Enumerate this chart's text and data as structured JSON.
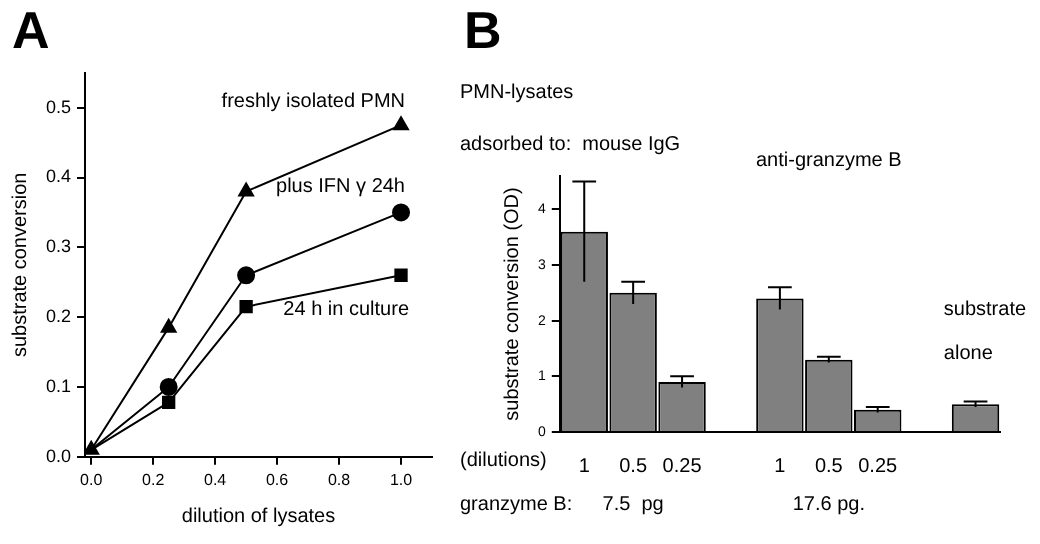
{
  "chart_data": [
    {
      "type": "line",
      "title": "A",
      "xlabel": "dilution of lysates",
      "ylabel": "substrate conversion",
      "xlim": [
        -0.02,
        1.1
      ],
      "ylim": [
        0,
        0.55
      ],
      "xticks": [
        {
          "value": 0,
          "label": "0.0"
        },
        {
          "value": 0.2,
          "label": "0.2"
        },
        {
          "value": 0.4,
          "label": "0.4"
        },
        {
          "value": 0.6,
          "label": "0.6"
        },
        {
          "value": 0.8,
          "label": "0.8"
        },
        {
          "value": 1,
          "label": "1.0"
        }
      ],
      "yticks": [
        {
          "value": 0,
          "label": "0.0"
        },
        0.1,
        0.2,
        0.3,
        0.4,
        0.5
      ],
      "grid": false,
      "legend": false,
      "series": [
        {
          "name": "freshly isolated PMN",
          "color": "#000000",
          "marker": "triangle",
          "x": [
            0,
            0.25,
            0.5,
            1.0
          ],
          "values": [
            0.01,
            0.185,
            0.38,
            0.475
          ]
        },
        {
          "name": "plus IFN γ 24h",
          "color": "#000000",
          "marker": "circle",
          "x": [
            0,
            0.25,
            0.5,
            1.0
          ],
          "values": [
            0.01,
            0.1,
            0.26,
            0.35
          ]
        },
        {
          "name": "24 h in culture",
          "color": "#000000",
          "marker": "square",
          "x": [
            0,
            0.25,
            0.5,
            1.0
          ],
          "values": [
            0.01,
            0.078,
            0.215,
            0.26
          ]
        }
      ]
    },
    {
      "type": "bar",
      "title": "B",
      "ylabel": "substrate conversion (OD)",
      "ylim": [
        0,
        4.6
      ],
      "yticks": [
        0,
        1,
        2,
        3,
        4
      ],
      "grid": false,
      "legend": false,
      "categories": [
        "1",
        "0.5",
        "0.25",
        null,
        "1",
        "0.5",
        "0.25",
        null,
        null
      ],
      "values": [
        3.6,
        2.5,
        0.9,
        null,
        2.4,
        1.3,
        0.4,
        null,
        0.5
      ],
      "errors": [
        0.9,
        0.2,
        0.1,
        null,
        0.2,
        0.05,
        0.05,
        null,
        0.05
      ],
      "color": "#808080",
      "annotations": [
        "PMN-lysates",
        "adsorbed to:  mouse IgG",
        "anti-granzyme B",
        "substrate alone",
        "(dilutions)",
        "granzyme B:",
        "7.5  pg",
        "17.6 pg."
      ]
    }
  ]
}
